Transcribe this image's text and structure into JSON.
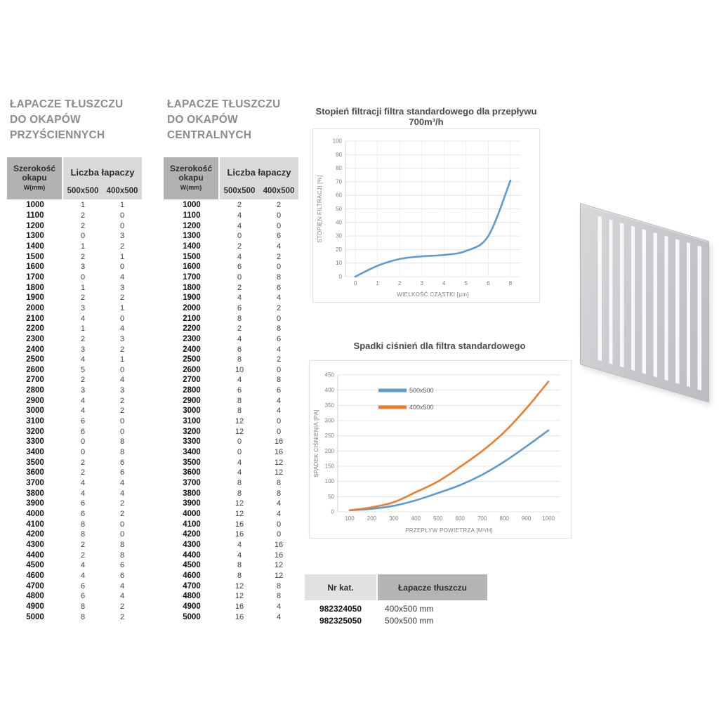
{
  "tables": {
    "wall": {
      "title_lines": [
        "ŁAPACZE TŁUSZCZU",
        "DO OKAPÓW",
        "PRZYŚCIENNYCH"
      ],
      "header": {
        "width_label": "Szerokość okapu",
        "width_unit": "W(mm)",
        "group_label": "Liczba łapaczy",
        "sub1": "500x500",
        "sub2": "400x500"
      },
      "rows": [
        [
          1000,
          1,
          1
        ],
        [
          1100,
          2,
          0
        ],
        [
          1200,
          2,
          0
        ],
        [
          1300,
          0,
          3
        ],
        [
          1400,
          1,
          2
        ],
        [
          1500,
          2,
          1
        ],
        [
          1600,
          3,
          0
        ],
        [
          1700,
          0,
          4
        ],
        [
          1800,
          1,
          3
        ],
        [
          1900,
          2,
          2
        ],
        [
          2000,
          3,
          1
        ],
        [
          2100,
          4,
          0
        ],
        [
          2200,
          1,
          4
        ],
        [
          2300,
          2,
          3
        ],
        [
          2400,
          3,
          2
        ],
        [
          2500,
          4,
          1
        ],
        [
          2600,
          5,
          0
        ],
        [
          2700,
          2,
          4
        ],
        [
          2800,
          3,
          3
        ],
        [
          2900,
          4,
          2
        ],
        [
          3000,
          4,
          2
        ],
        [
          3100,
          6,
          0
        ],
        [
          3200,
          6,
          0
        ],
        [
          3300,
          0,
          8
        ],
        [
          3400,
          0,
          8
        ],
        [
          3500,
          2,
          6
        ],
        [
          3600,
          2,
          6
        ],
        [
          3700,
          4,
          4
        ],
        [
          3800,
          4,
          4
        ],
        [
          3900,
          6,
          2
        ],
        [
          4000,
          6,
          2
        ],
        [
          4100,
          8,
          0
        ],
        [
          4200,
          8,
          0
        ],
        [
          4300,
          2,
          8
        ],
        [
          4400,
          2,
          8
        ],
        [
          4500,
          4,
          6
        ],
        [
          4600,
          4,
          6
        ],
        [
          4700,
          6,
          4
        ],
        [
          4800,
          6,
          4
        ],
        [
          4900,
          8,
          2
        ],
        [
          5000,
          8,
          2
        ]
      ]
    },
    "central": {
      "title_lines": [
        "ŁAPACZE TŁUSZCZU",
        "DO OKAPÓW",
        "CENTRALNYCH"
      ],
      "header": {
        "width_label": "Szerokość okapu",
        "width_unit": "W(mm)",
        "group_label": "Liczba łapaczy",
        "sub1": "500x500",
        "sub2": "400x500"
      },
      "rows": [
        [
          1000,
          2,
          2
        ],
        [
          1100,
          4,
          0
        ],
        [
          1200,
          4,
          0
        ],
        [
          1300,
          0,
          6
        ],
        [
          1400,
          2,
          4
        ],
        [
          1500,
          4,
          2
        ],
        [
          1600,
          6,
          0
        ],
        [
          1700,
          0,
          8
        ],
        [
          1800,
          2,
          6
        ],
        [
          1900,
          4,
          4
        ],
        [
          2000,
          6,
          2
        ],
        [
          2100,
          8,
          0
        ],
        [
          2200,
          2,
          8
        ],
        [
          2300,
          4,
          6
        ],
        [
          2400,
          6,
          4
        ],
        [
          2500,
          8,
          2
        ],
        [
          2600,
          10,
          0
        ],
        [
          2700,
          4,
          8
        ],
        [
          2800,
          6,
          6
        ],
        [
          2900,
          8,
          4
        ],
        [
          3000,
          8,
          4
        ],
        [
          3100,
          12,
          0
        ],
        [
          3200,
          12,
          0
        ],
        [
          3300,
          0,
          16
        ],
        [
          3400,
          0,
          16
        ],
        [
          3500,
          4,
          12
        ],
        [
          3600,
          4,
          12
        ],
        [
          3700,
          8,
          8
        ],
        [
          3800,
          8,
          8
        ],
        [
          3900,
          12,
          4
        ],
        [
          4000,
          12,
          4
        ],
        [
          4100,
          16,
          0
        ],
        [
          4200,
          16,
          0
        ],
        [
          4300,
          4,
          16
        ],
        [
          4400,
          4,
          16
        ],
        [
          4500,
          8,
          12
        ],
        [
          4600,
          8,
          12
        ],
        [
          4700,
          12,
          8
        ],
        [
          4800,
          12,
          8
        ],
        [
          4900,
          16,
          4
        ],
        [
          5000,
          16,
          4
        ]
      ]
    }
  },
  "chart_data": [
    {
      "type": "line",
      "title": "Stopień filtracji filtra standardowego dla przepływu 700m³/h",
      "categories": [
        "0",
        "1",
        "2",
        "3",
        "4",
        "5",
        "6",
        "8"
      ],
      "series": [
        {
          "name": "",
          "color": "#5B9BD5",
          "values": [
            0,
            8,
            13,
            15,
            16,
            19,
            30,
            71
          ]
        }
      ],
      "xlabel": "WIELKOŚĆ CZĄSTKI [µm]",
      "ylabel": "STOPIEŃ FILTRACJI [%]",
      "ylim": [
        0,
        100
      ],
      "ystep": 10,
      "grid": "both",
      "legend": false,
      "margins": {
        "l": 46,
        "r": 27,
        "t": 17,
        "b": 36,
        "pad": 14
      }
    },
    {
      "type": "line",
      "title": "Spadki ciśnień dla filtra standardowego",
      "categories": [
        "100",
        "200",
        "300",
        "400",
        "500",
        "600",
        "700",
        "800",
        "900",
        "1000"
      ],
      "series": [
        {
          "name": "500x500",
          "color": "#5B9BD5",
          "values": [
            5,
            10,
            20,
            38,
            62,
            88,
            122,
            165,
            215,
            268
          ]
        },
        {
          "name": "400x500",
          "color": "#ED7D31",
          "values": [
            5,
            15,
            32,
            65,
            100,
            148,
            200,
            262,
            340,
            428
          ]
        }
      ],
      "xlabel": "PRZEPŁYW POWIETRZA [M³/H]",
      "ylabel": "SPADEK CIŚNIENIA [PA]",
      "ylim": [
        0,
        450
      ],
      "ystep": 50,
      "grid": "horizontal",
      "legend": true,
      "margins": {
        "l": 40,
        "r": 15,
        "t": 20,
        "b": 37,
        "pad": 17
      }
    }
  ],
  "catalog": {
    "headers": [
      "Nr kat.",
      "Łapacze tłuszczu"
    ],
    "rows": [
      [
        "982324050",
        "400x500 mm"
      ],
      [
        "982325050",
        "500x500 mm"
      ]
    ]
  },
  "filter_image": {
    "name": "grease-filter-panel",
    "slot_count": 10,
    "body_color": "#c7c7cb",
    "slot_color": "#f7f7f9"
  },
  "colors": {
    "series_blue": "#5B9BD5",
    "series_orange": "#ED7D31",
    "header_dark": "#b2b2b2",
    "header_light": "#d9d9d9",
    "title_gray": "#8a8c8f"
  }
}
